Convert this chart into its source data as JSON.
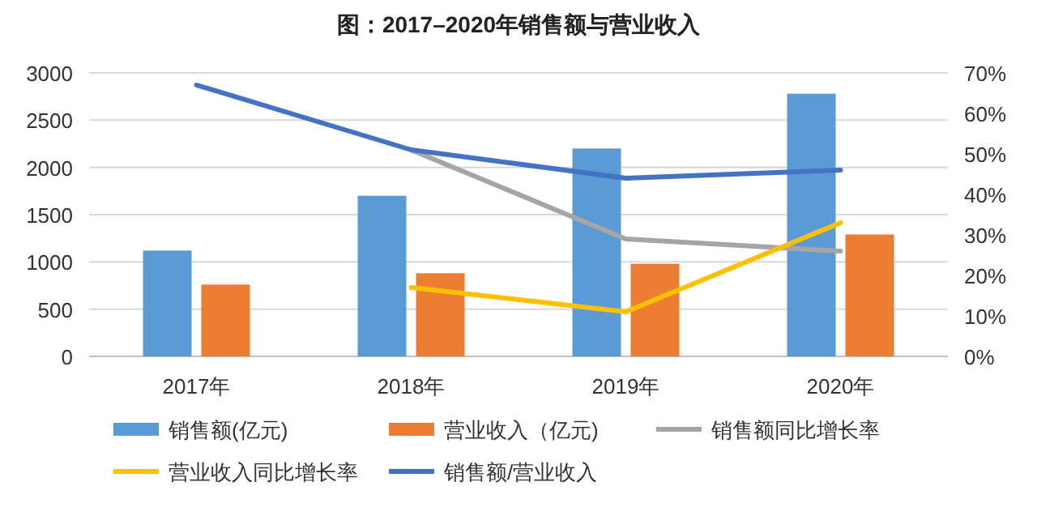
{
  "chart_data": {
    "type": "bar",
    "title": "图：2017–2020年销售额与营业收入",
    "categories": [
      "2017年",
      "2018年",
      "2019年",
      "2020年"
    ],
    "series": [
      {
        "name": "销售额(亿元)",
        "color": "#5b9bd5",
        "values": [
          1120,
          1700,
          2200,
          2780
        ]
      },
      {
        "name": "营业收入（亿元)",
        "color": "#ed7d31",
        "values": [
          760,
          880,
          980,
          1290
        ]
      },
      {
        "name": "销售额同比增长率",
        "type": "line",
        "axis": "y2",
        "color": "#a5a5a5",
        "values": [
          null,
          51,
          29,
          26
        ]
      },
      {
        "name": "营业收入同比增长率",
        "type": "line",
        "axis": "y2",
        "color": "#ffc000",
        "values": [
          null,
          17,
          11,
          33
        ]
      },
      {
        "name": "销售额/营业收入",
        "type": "line",
        "axis": "y2",
        "color": "#4472c4",
        "values": [
          67,
          51,
          44,
          46
        ]
      }
    ],
    "ylim": [
      0,
      3000
    ],
    "yticks": [
      0,
      500,
      1000,
      1500,
      2000,
      2500,
      3000
    ],
    "y2lim": [
      0,
      70
    ],
    "y2ticks": [
      {
        "value": 0,
        "label": "0%"
      },
      {
        "value": 10,
        "label": "10%"
      },
      {
        "value": 20,
        "label": "20%"
      },
      {
        "value": 30,
        "label": "30%"
      },
      {
        "value": 40,
        "label": "40%"
      },
      {
        "value": 50,
        "label": "50%"
      },
      {
        "value": 60,
        "label": "60%"
      },
      {
        "value": 70,
        "label": "70%"
      }
    ],
    "grid": "y",
    "legend": "bottom",
    "marker": "none",
    "line_style": "solid"
  }
}
